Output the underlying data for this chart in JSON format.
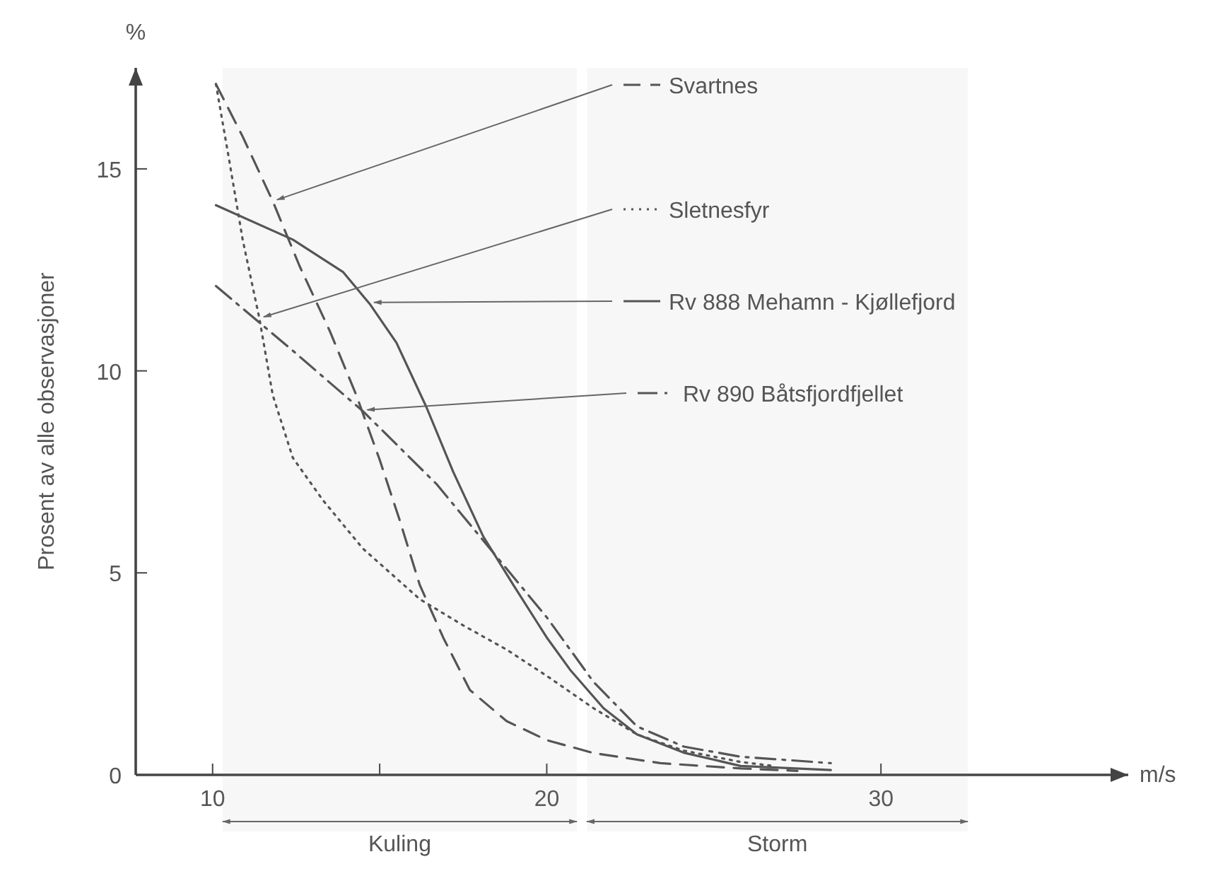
{
  "chart_data": {
    "type": "line",
    "xlabel": "m/s",
    "ylabel": "Prosent av alle observasjoner",
    "annotations": [
      "%"
    ],
    "xlim": [
      7.7,
      37.4
    ],
    "ylim": [
      0,
      17.5
    ],
    "xticks": [
      10,
      {
        "value": 15,
        "label": null
      },
      20,
      30
    ],
    "yticks": [
      0,
      5,
      10,
      15
    ],
    "grid": false,
    "legend": "top right",
    "series": [
      {
        "name": "Svartnes",
        "color": "#555555",
        "line_style": "dashed",
        "x": [
          10.1,
          10.9,
          11.8,
          12.6,
          13.5,
          14.3,
          15.0,
          15.6,
          16.2,
          16.9,
          17.7,
          18.8,
          20.0,
          21.4,
          23.4,
          25.8,
          27.5
        ],
        "values": [
          17.1,
          15.8,
          14.2,
          12.6,
          11.0,
          9.4,
          7.8,
          6.3,
          4.7,
          3.4,
          2.1,
          1.33,
          0.86,
          0.54,
          0.29,
          0.16,
          0.1
        ]
      },
      {
        "name": "Sletnesfyr",
        "color": "#555555",
        "line_style": "dotted",
        "x": [
          10.1,
          10.5,
          10.9,
          11.4,
          11.8,
          12.4,
          13.3,
          14.5,
          16.2,
          17.5,
          18.8,
          20.0,
          21.4,
          22.7,
          24.1,
          25.8,
          26.8
        ],
        "values": [
          17.1,
          15.2,
          13.25,
          11.3,
          9.4,
          7.85,
          6.8,
          5.6,
          4.35,
          3.7,
          3.1,
          2.45,
          1.65,
          1.0,
          0.6,
          0.32,
          0.22
        ]
      },
      {
        "name": "Rv 888 Mehamn - Kjøllefjord",
        "color": "#555555",
        "line_style": "solid",
        "x": [
          10.1,
          12.4,
          13.9,
          14.7,
          15.5,
          16.4,
          17.2,
          18.1,
          19.0,
          20.0,
          20.7,
          21.7,
          22.7,
          24.1,
          25.8,
          28.5
        ],
        "values": [
          14.1,
          13.25,
          12.45,
          11.66,
          10.7,
          9.1,
          7.5,
          5.9,
          4.7,
          3.4,
          2.6,
          1.65,
          1.0,
          0.55,
          0.22,
          0.12
        ]
      },
      {
        "name": "Rv 890 Båtsfjordfjellet",
        "color": "#555555",
        "line_style": "dashdot",
        "x": [
          10.1,
          12.4,
          14.5,
          16.7,
          18.3,
          20.0,
          21.4,
          22.7,
          24.1,
          25.8,
          28.5
        ],
        "values": [
          12.1,
          10.5,
          9.0,
          7.2,
          5.6,
          3.9,
          2.3,
          1.2,
          0.7,
          0.45,
          0.29
        ]
      }
    ],
    "bands": [
      {
        "axis": "x",
        "from": 10.3,
        "to": 20.9,
        "label": "Kuling"
      },
      {
        "axis": "x",
        "from": 21.2,
        "to": 32.6,
        "label": "Storm"
      }
    ]
  }
}
